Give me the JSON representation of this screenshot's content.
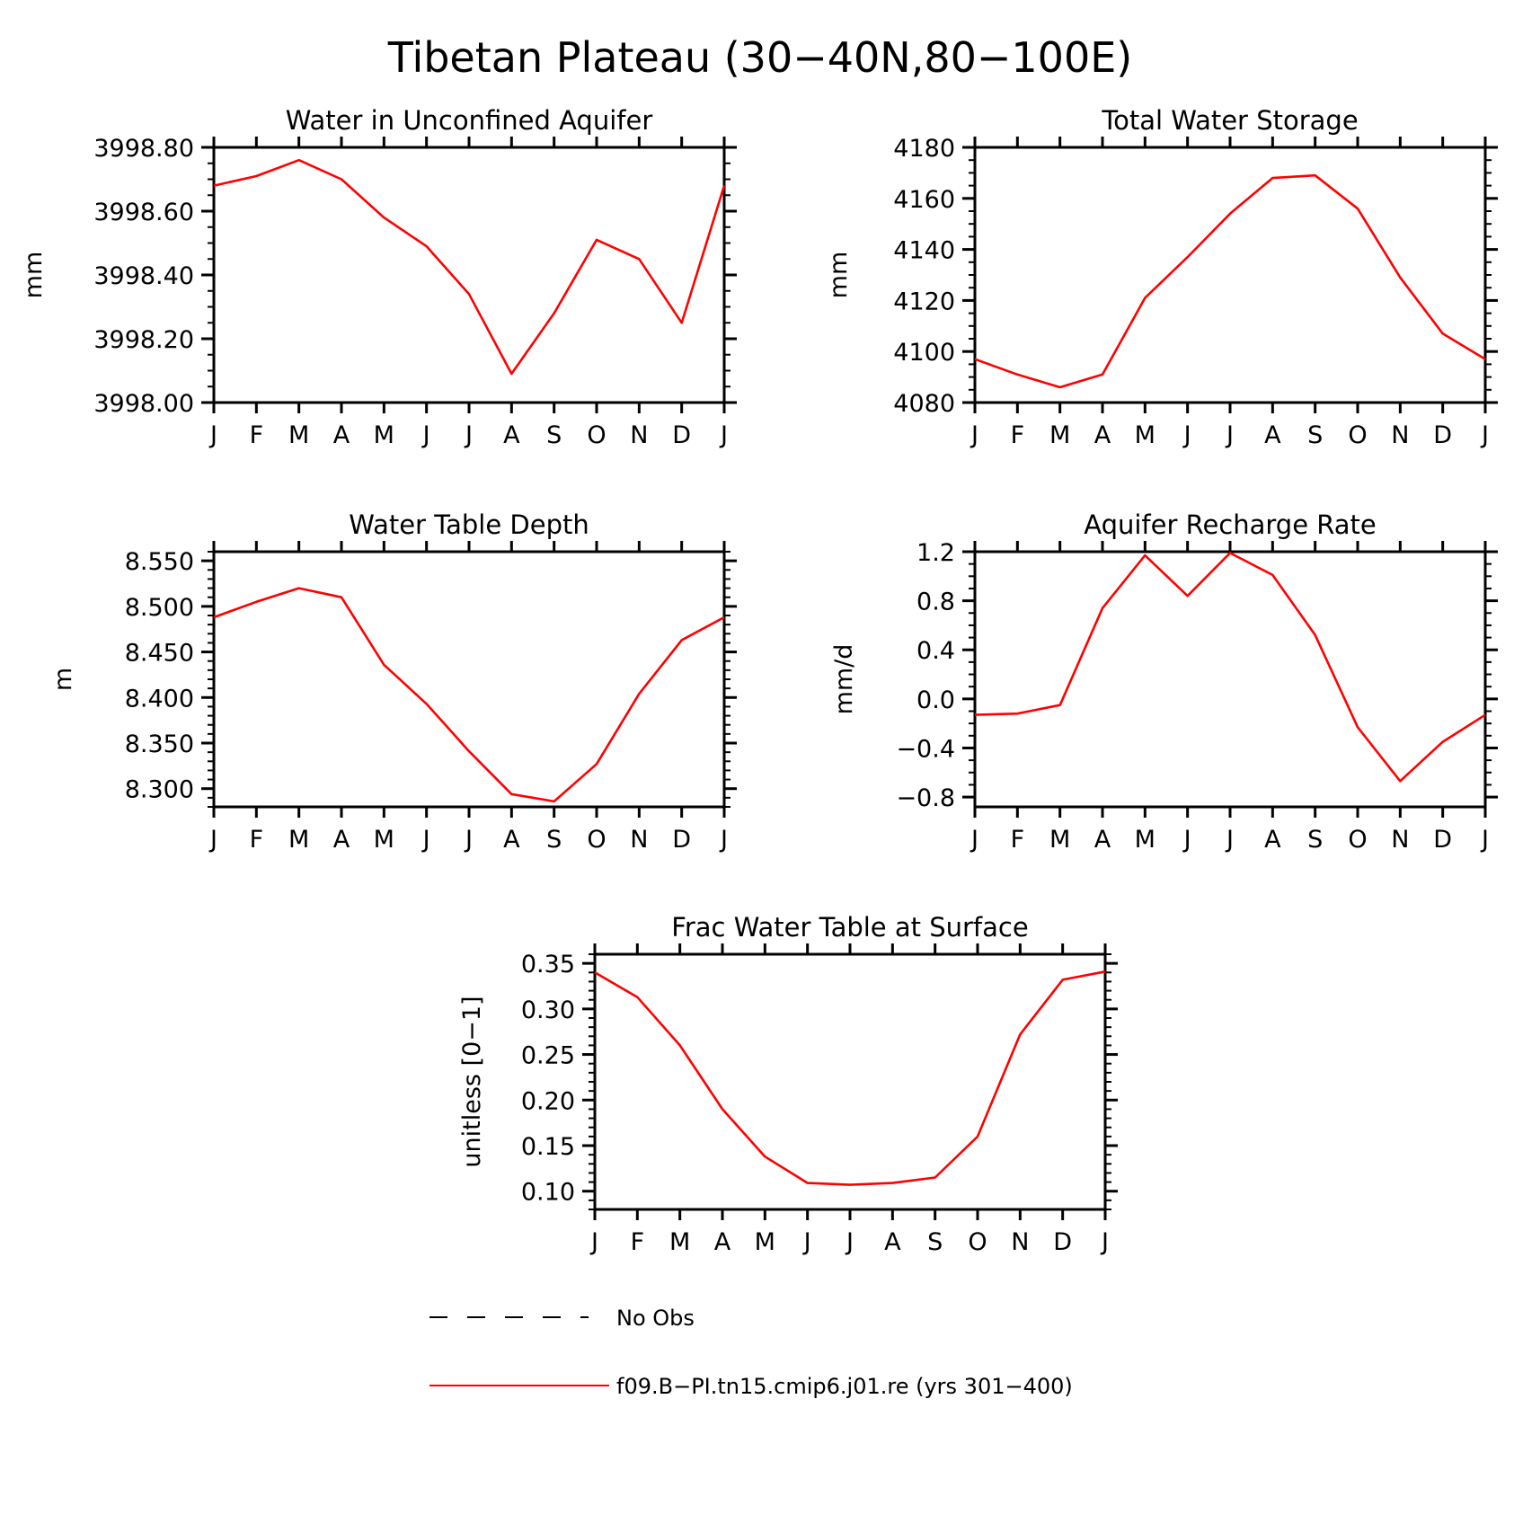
{
  "figure_title": "Tibetan Plateau (30−40N,80−100E)",
  "colors": {
    "model": "#ff0000",
    "obs": "#000000",
    "axis": "#000000"
  },
  "legend": {
    "placement": "bottom-center",
    "entries": [
      {
        "label": "No Obs",
        "style": "dashed",
        "color": "#000000"
      },
      {
        "label": "f09.B−PI.tn15.cmip6.j01.re (yrs 301−400)",
        "style": "solid",
        "color": "#ff0000"
      }
    ]
  },
  "chart_data": [
    {
      "type": "line",
      "title": "Water in Unconfined Aquifer",
      "ylabel": "mm",
      "x": [
        "J",
        "F",
        "M",
        "A",
        "M",
        "J",
        "J",
        "A",
        "S",
        "O",
        "N",
        "D",
        "J"
      ],
      "ylim": [
        3998.0,
        3998.8
      ],
      "yticks": [
        "3998.00",
        "3998.20",
        "3998.40",
        "3998.60",
        "3998.80"
      ],
      "yminor_step": 0.05,
      "grid": false,
      "series": [
        {
          "values": [
            3998.68,
            3998.71,
            3998.76,
            3998.7,
            3998.58,
            3998.49,
            3998.34,
            3998.09,
            3998.28,
            3998.51,
            3998.45,
            3998.25,
            3998.68
          ]
        }
      ]
    },
    {
      "type": "line",
      "title": "Total Water Storage",
      "ylabel": "mm",
      "x": [
        "J",
        "F",
        "M",
        "A",
        "M",
        "J",
        "J",
        "A",
        "S",
        "O",
        "N",
        "D",
        "J"
      ],
      "ylim": [
        4080,
        4180
      ],
      "yticks": [
        "4080",
        "4100",
        "4120",
        "4140",
        "4160",
        "4180"
      ],
      "yminor_step": 5,
      "grid": false,
      "series": [
        {
          "values": [
            4097,
            4091,
            4086,
            4091,
            4121,
            4137,
            4154,
            4168,
            4169,
            4156,
            4129,
            4107,
            4097
          ]
        }
      ]
    },
    {
      "type": "line",
      "title": "Water Table Depth",
      "ylabel": "m",
      "x": [
        "J",
        "F",
        "M",
        "A",
        "M",
        "J",
        "J",
        "A",
        "S",
        "O",
        "N",
        "D",
        "J"
      ],
      "ylim": [
        8.28,
        8.56
      ],
      "yticks": [
        "8.300",
        "8.350",
        "8.400",
        "8.450",
        "8.500",
        "8.550"
      ],
      "yminor_step": 0.01,
      "grid": false,
      "series": [
        {
          "values": [
            8.488,
            8.505,
            8.52,
            8.51,
            8.436,
            8.393,
            8.341,
            8.294,
            8.286,
            8.327,
            8.404,
            8.463,
            8.488
          ]
        }
      ]
    },
    {
      "type": "line",
      "title": "Aquifer Recharge Rate",
      "ylabel": "mm/d",
      "x": [
        "J",
        "F",
        "M",
        "A",
        "M",
        "J",
        "J",
        "A",
        "S",
        "O",
        "N",
        "D",
        "J"
      ],
      "ylim": [
        -0.88,
        1.2
      ],
      "yticks": [
        "−0.8",
        "−0.4",
        "0.0",
        "0.4",
        "0.8",
        "1.2"
      ],
      "yminor_step": 0.1,
      "grid": false,
      "series": [
        {
          "values": [
            -0.13,
            -0.12,
            -0.05,
            0.74,
            1.17,
            0.84,
            1.19,
            1.01,
            0.52,
            -0.23,
            -0.67,
            -0.35,
            -0.13
          ]
        }
      ]
    },
    {
      "type": "line",
      "title": "Frac Water Table at Surface",
      "ylabel": "unitless [0−1]",
      "x": [
        "J",
        "F",
        "M",
        "A",
        "M",
        "J",
        "J",
        "A",
        "S",
        "O",
        "N",
        "D",
        "J"
      ],
      "ylim": [
        0.08,
        0.36
      ],
      "yticks": [
        "0.10",
        "0.15",
        "0.20",
        "0.25",
        "0.30",
        "0.35"
      ],
      "yminor_step": 0.01,
      "grid": false,
      "series": [
        {
          "values": [
            0.34,
            0.313,
            0.26,
            0.19,
            0.138,
            0.109,
            0.107,
            0.109,
            0.115,
            0.16,
            0.272,
            0.332,
            0.341
          ]
        }
      ]
    }
  ]
}
